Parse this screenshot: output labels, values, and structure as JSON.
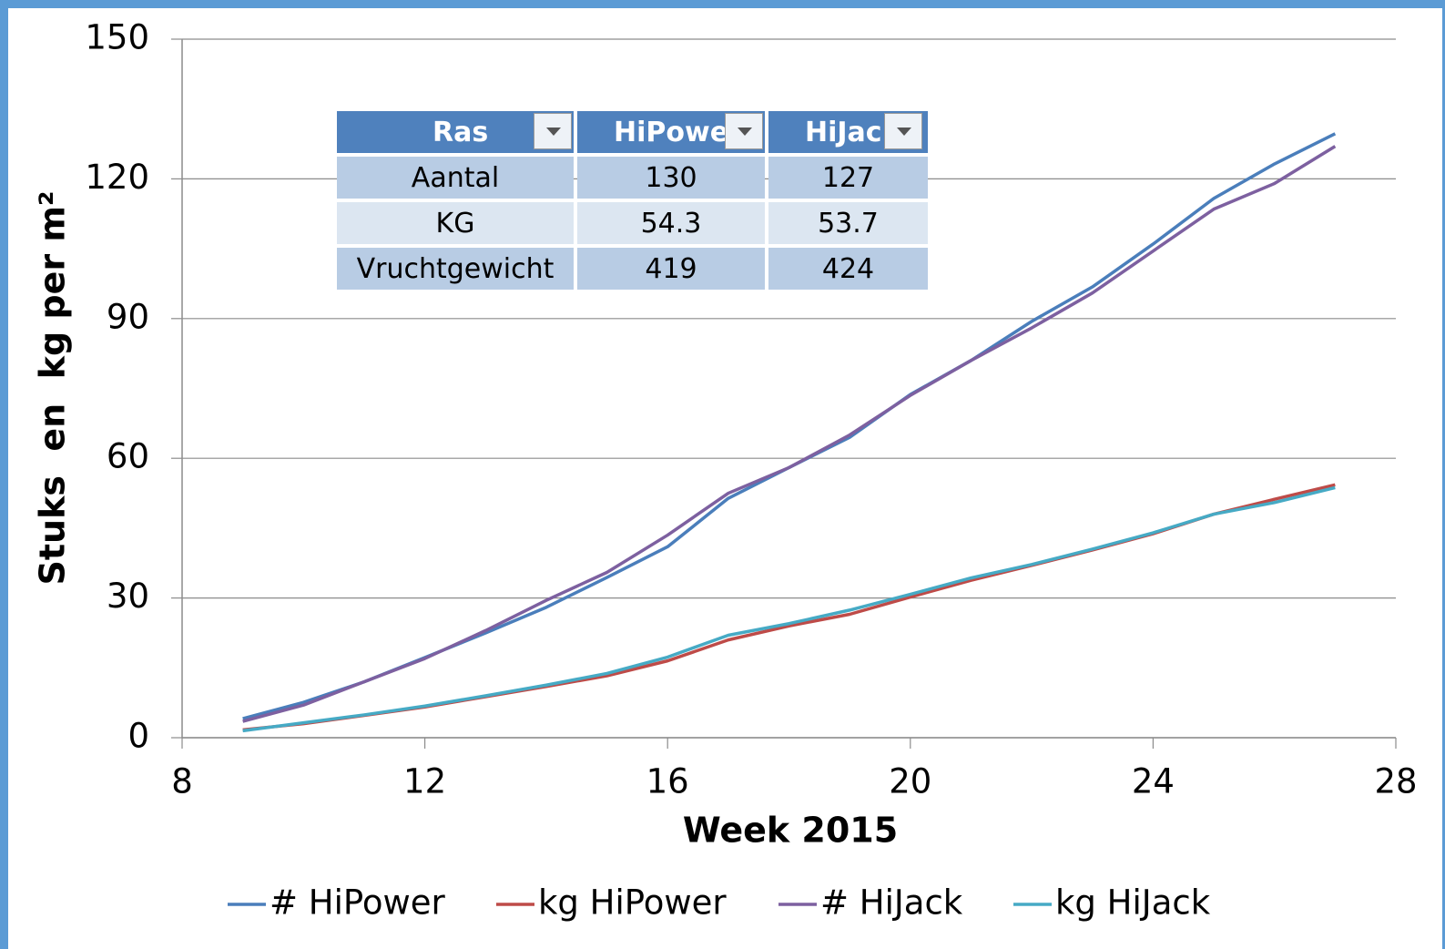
{
  "chart_data": {
    "type": "line",
    "x": [
      9,
      10,
      11,
      12,
      13,
      14,
      15,
      16,
      17,
      18,
      19,
      20,
      21,
      22,
      23,
      24,
      25,
      26,
      27
    ],
    "xlabel": "Week 2015",
    "ylabel": "Stuks  en  kg per m²",
    "xlim": [
      8,
      28
    ],
    "xticks": [
      8,
      12,
      16,
      20,
      24,
      28
    ],
    "ylim": [
      0,
      150
    ],
    "yticks": [
      0,
      30,
      60,
      90,
      120,
      150
    ],
    "grid": true,
    "legend": "bottom",
    "series": [
      {
        "name": "# HiPower",
        "color": "#4a7ebb",
        "values": [
          4.1,
          7.6,
          12,
          17.2,
          22.5,
          28,
          34.4,
          41,
          51.4,
          58,
          64.5,
          73.7,
          81,
          89.4,
          96.8,
          106,
          115.8,
          123.2,
          129.7
        ]
      },
      {
        "name": "kg HiPower",
        "color": "#be4b48",
        "values": [
          1.7,
          3,
          4.8,
          6.6,
          8.8,
          11,
          13.3,
          16.5,
          21,
          24,
          26.5,
          30.2,
          33.8,
          37,
          40.3,
          43.8,
          48,
          51.2,
          54.3
        ]
      },
      {
        "name": "# HiJack",
        "color": "#7d60a0",
        "values": [
          3.5,
          7,
          12,
          17,
          23,
          29.5,
          35.5,
          43.5,
          52.5,
          58,
          65,
          73.5,
          81,
          88,
          95.5,
          104.5,
          113.5,
          119,
          127
        ]
      },
      {
        "name": "kg HiJack",
        "color": "#46aac5",
        "values": [
          1.5,
          3.2,
          4.9,
          6.8,
          9,
          11.3,
          13.8,
          17.3,
          22,
          24.5,
          27.4,
          30.8,
          34.3,
          37.2,
          40.5,
          44,
          48,
          50.5,
          53.7
        ]
      }
    ]
  },
  "table": {
    "header": [
      "Ras",
      "HiPowe",
      "HiJac"
    ],
    "rows": [
      [
        "Aantal",
        130,
        127
      ],
      [
        "KG",
        54.3,
        53.7
      ],
      [
        "Vruchtgewicht",
        419,
        424
      ]
    ]
  }
}
